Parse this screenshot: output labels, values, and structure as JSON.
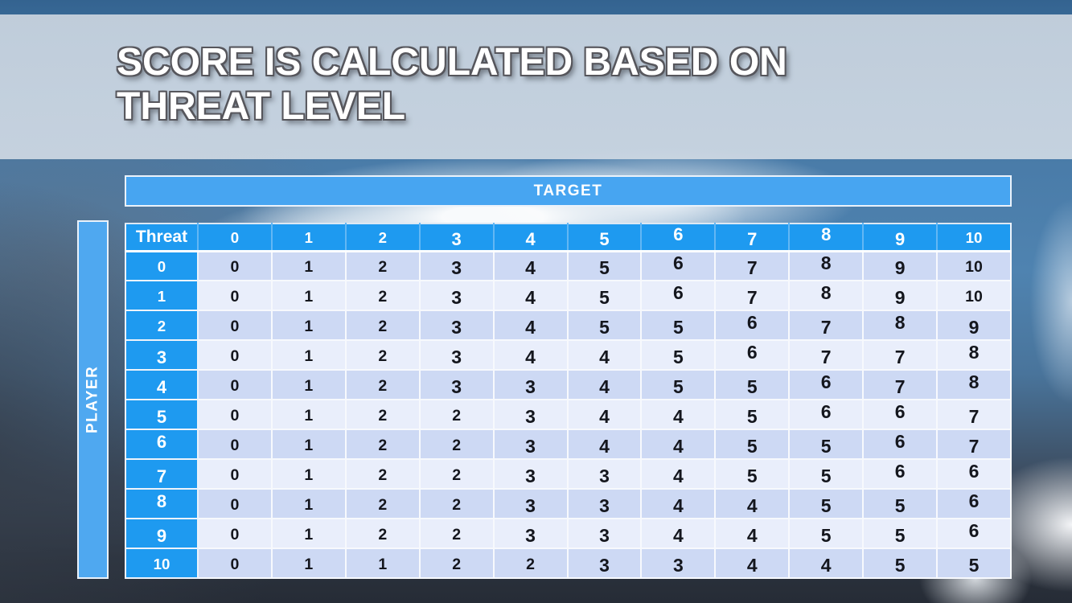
{
  "slide": {
    "title_line1": "SCORE IS CALCULATED BASED ON",
    "title_line2": "THREAT LEVEL"
  },
  "matrix": {
    "target_label": "TARGET",
    "player_label": "PLAYER",
    "corner_label": "Threat",
    "column_headers": [
      "0",
      "1",
      "2",
      "3",
      "4",
      "5",
      "6",
      "7",
      "8",
      "9",
      "10"
    ],
    "row_headers": [
      "0",
      "1",
      "2",
      "3",
      "4",
      "5",
      "6",
      "7",
      "8",
      "9",
      "10"
    ],
    "rows": [
      [
        0,
        1,
        2,
        3,
        4,
        5,
        6,
        7,
        8,
        9,
        10
      ],
      [
        0,
        1,
        2,
        3,
        4,
        5,
        6,
        7,
        8,
        9,
        10
      ],
      [
        0,
        1,
        2,
        3,
        4,
        5,
        5,
        6,
        7,
        8,
        9
      ],
      [
        0,
        1,
        2,
        3,
        4,
        4,
        5,
        6,
        7,
        7,
        8
      ],
      [
        0,
        1,
        2,
        3,
        3,
        4,
        5,
        5,
        6,
        7,
        8
      ],
      [
        0,
        1,
        2,
        2,
        3,
        4,
        4,
        5,
        6,
        6,
        7
      ],
      [
        0,
        1,
        2,
        2,
        3,
        4,
        4,
        5,
        5,
        6,
        7
      ],
      [
        0,
        1,
        2,
        2,
        3,
        3,
        4,
        5,
        5,
        6,
        6
      ],
      [
        0,
        1,
        2,
        2,
        3,
        3,
        4,
        4,
        5,
        5,
        6
      ],
      [
        0,
        1,
        2,
        2,
        3,
        3,
        4,
        4,
        5,
        5,
        6
      ],
      [
        0,
        1,
        1,
        2,
        2,
        3,
        3,
        4,
        4,
        5,
        5
      ]
    ]
  },
  "colors": {
    "header_blue": "#1E9AF0",
    "band_blue": "#47A5F1",
    "player_blue": "#4FA8F0",
    "row_dark": "#CDD9F4",
    "row_light": "#E9EEFB",
    "cell_text": "#14161D",
    "header_text": "#FFFFFF",
    "header_separator": "#63B7F4",
    "cell_border": "#F7F9FD"
  }
}
